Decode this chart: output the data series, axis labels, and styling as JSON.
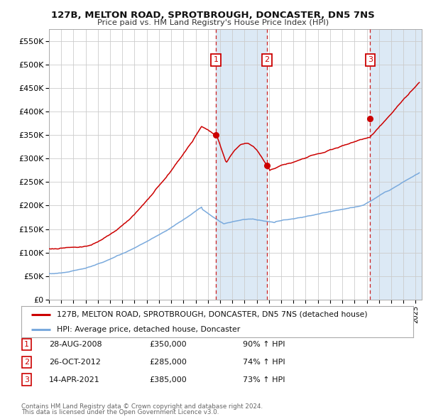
{
  "title1": "127B, MELTON ROAD, SPROTBROUGH, DONCASTER, DN5 7NS",
  "title2": "Price paid vs. HM Land Registry's House Price Index (HPI)",
  "ylim": [
    0,
    575000
  ],
  "xlim_start": 1995.0,
  "xlim_end": 2025.5,
  "yticks": [
    0,
    50000,
    100000,
    150000,
    200000,
    250000,
    300000,
    350000,
    400000,
    450000,
    500000,
    550000
  ],
  "ytick_labels": [
    "£0",
    "£50K",
    "£100K",
    "£150K",
    "£200K",
    "£250K",
    "£300K",
    "£350K",
    "£400K",
    "£450K",
    "£500K",
    "£550K"
  ],
  "xticks": [
    1995,
    1996,
    1997,
    1998,
    1999,
    2000,
    2001,
    2002,
    2003,
    2004,
    2005,
    2006,
    2007,
    2008,
    2009,
    2010,
    2011,
    2012,
    2013,
    2014,
    2015,
    2016,
    2017,
    2018,
    2019,
    2020,
    2021,
    2022,
    2023,
    2024,
    2025
  ],
  "sale_color": "#cc0000",
  "hpi_color": "#7aaadd",
  "shade_color": "#dce9f5",
  "grid_color": "#cccccc",
  "sale_dates": [
    2008.66,
    2012.82,
    2021.28
  ],
  "sale_prices": [
    350000,
    285000,
    385000
  ],
  "sale_labels": [
    "1",
    "2",
    "3"
  ],
  "vline_color": "#cc2222",
  "legend_sale": "127B, MELTON ROAD, SPROTBROUGH, DONCASTER, DN5 7NS (detached house)",
  "legend_hpi": "HPI: Average price, detached house, Doncaster",
  "table_rows": [
    [
      "1",
      "28-AUG-2008",
      "£350,000",
      "90% ↑ HPI"
    ],
    [
      "2",
      "26-OCT-2012",
      "£285,000",
      "74% ↑ HPI"
    ],
    [
      "3",
      "14-APR-2021",
      "£385,000",
      "73% ↑ HPI"
    ]
  ],
  "footnote1": "Contains HM Land Registry data © Crown copyright and database right 2024.",
  "footnote2": "This data is licensed under the Open Government Licence v3.0.",
  "bg_color": "#ffffff"
}
